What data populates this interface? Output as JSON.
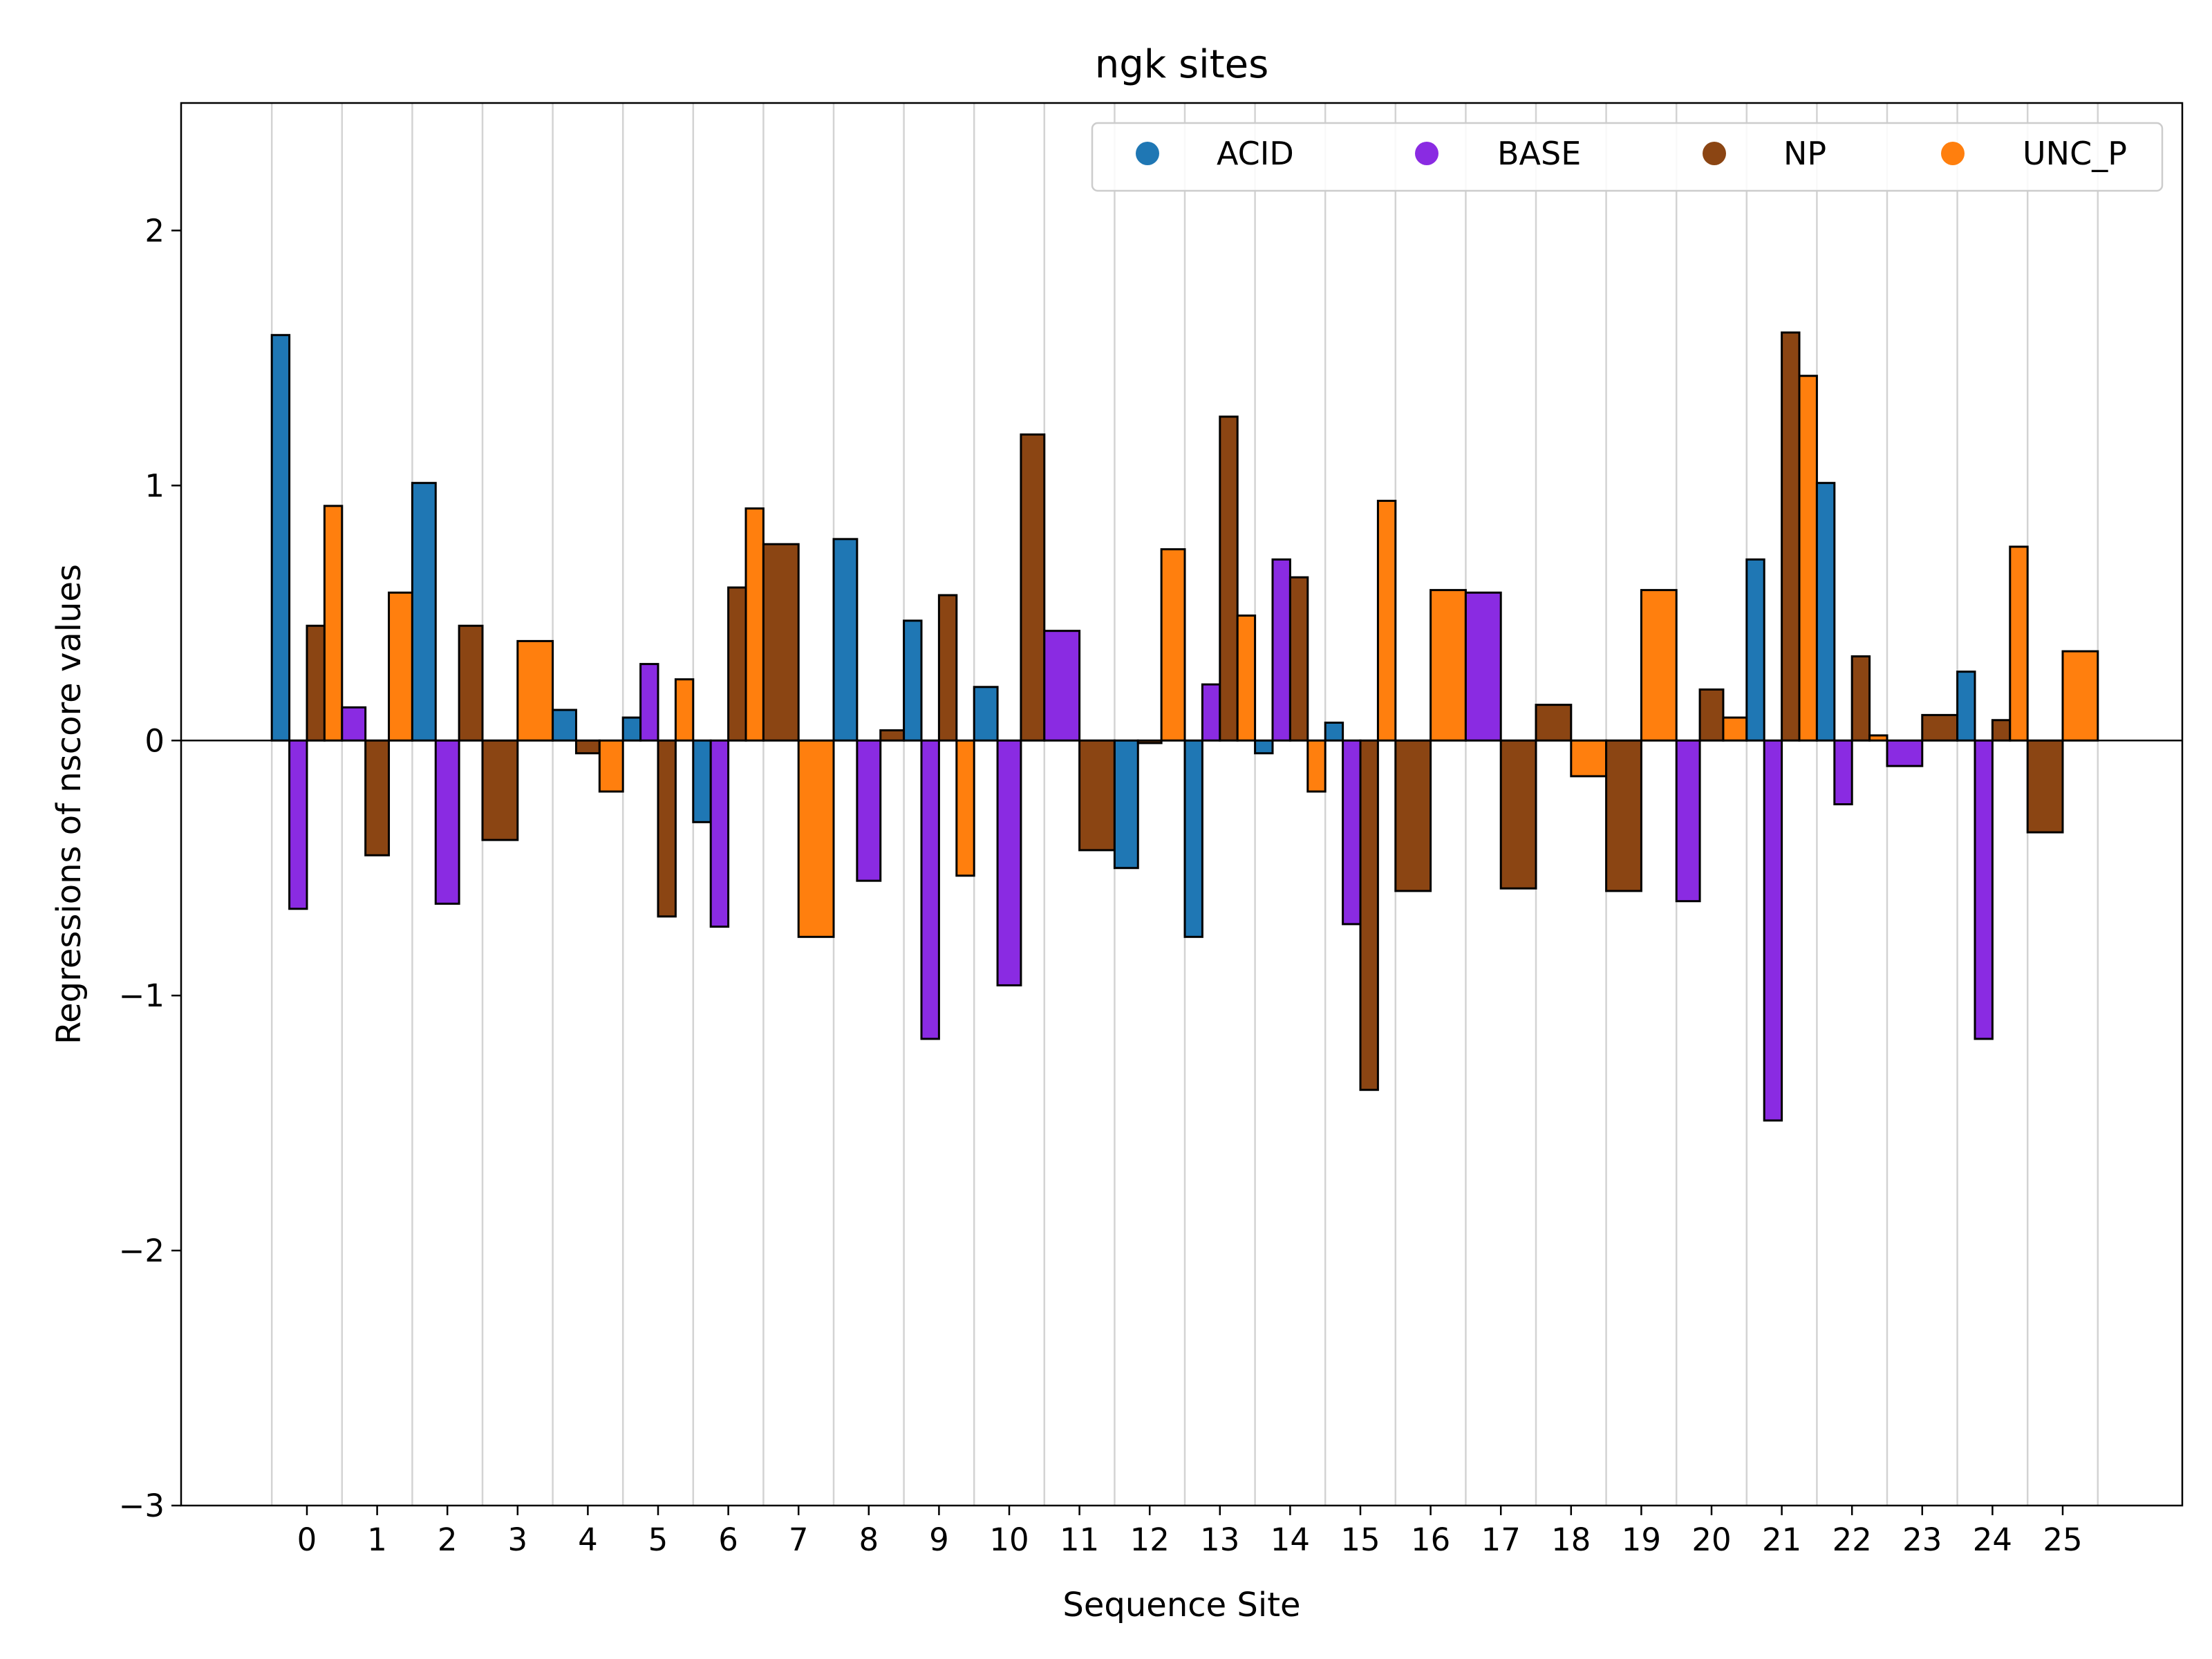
{
  "chart_data": {
    "type": "bar",
    "title": "ngk sites",
    "xlabel": "Sequence Site",
    "ylabel": "Regressions of nscore values",
    "ylim": [
      -3,
      2.5
    ],
    "yticks": [
      2,
      1,
      0,
      -1,
      -2,
      -3
    ],
    "ytick_labels": [
      "2",
      "1",
      "0",
      "−1",
      "−2",
      "−3"
    ],
    "categories": [
      "0",
      "1",
      "2",
      "3",
      "4",
      "5",
      "6",
      "7",
      "8",
      "9",
      "10",
      "11",
      "12",
      "13",
      "14",
      "15",
      "16",
      "17",
      "18",
      "19",
      "20",
      "21",
      "22",
      "23",
      "24",
      "25"
    ],
    "grid": "vertical",
    "legend_position": "top-right",
    "legend": [
      {
        "name": "ACID",
        "color": "#1f77b4"
      },
      {
        "name": "BASE",
        "color": "#8a2be2"
      },
      {
        "name": "NP",
        "color": "#8b4513"
      },
      {
        "name": "UNC_P",
        "color": "#ff7f0e"
      }
    ],
    "sites": [
      {
        "site": "0",
        "bars": [
          {
            "group": "ACID",
            "value": 1.59
          },
          {
            "group": "BASE",
            "value": -0.66
          },
          {
            "group": "NP",
            "value": 0.45
          },
          {
            "group": "UNC_P",
            "value": 0.92
          }
        ]
      },
      {
        "site": "1",
        "bars": [
          {
            "group": "BASE",
            "value": 0.13
          },
          {
            "group": "NP",
            "value": -0.45
          },
          {
            "group": "UNC_P",
            "value": 0.58
          }
        ]
      },
      {
        "site": "2",
        "bars": [
          {
            "group": "ACID",
            "value": 1.01
          },
          {
            "group": "BASE",
            "value": -0.64
          },
          {
            "group": "NP",
            "value": 0.45
          }
        ]
      },
      {
        "site": "3",
        "bars": [
          {
            "group": "NP",
            "value": -0.39
          },
          {
            "group": "UNC_P",
            "value": 0.39
          }
        ]
      },
      {
        "site": "4",
        "bars": [
          {
            "group": "ACID",
            "value": 0.12
          },
          {
            "group": "NP",
            "value": -0.05
          },
          {
            "group": "UNC_P",
            "value": -0.2
          }
        ]
      },
      {
        "site": "5",
        "bars": [
          {
            "group": "ACID",
            "value": 0.09
          },
          {
            "group": "BASE",
            "value": 0.3
          },
          {
            "group": "NP",
            "value": -0.69
          },
          {
            "group": "UNC_P",
            "value": 0.24
          }
        ]
      },
      {
        "site": "6",
        "bars": [
          {
            "group": "ACID",
            "value": -0.32
          },
          {
            "group": "BASE",
            "value": -0.73
          },
          {
            "group": "NP",
            "value": 0.6
          },
          {
            "group": "UNC_P",
            "value": 0.91
          }
        ]
      },
      {
        "site": "7",
        "bars": [
          {
            "group": "NP",
            "value": 0.77
          },
          {
            "group": "UNC_P",
            "value": -0.77
          }
        ]
      },
      {
        "site": "8",
        "bars": [
          {
            "group": "ACID",
            "value": 0.79
          },
          {
            "group": "BASE",
            "value": -0.55
          },
          {
            "group": "NP",
            "value": 0.04
          }
        ]
      },
      {
        "site": "9",
        "bars": [
          {
            "group": "ACID",
            "value": 0.47
          },
          {
            "group": "BASE",
            "value": -1.17
          },
          {
            "group": "NP",
            "value": 0.57
          },
          {
            "group": "UNC_P",
            "value": -0.53
          }
        ]
      },
      {
        "site": "10",
        "bars": [
          {
            "group": "ACID",
            "value": 0.21
          },
          {
            "group": "BASE",
            "value": -0.96
          },
          {
            "group": "NP",
            "value": 1.2
          }
        ]
      },
      {
        "site": "11",
        "bars": [
          {
            "group": "BASE",
            "value": 0.43
          },
          {
            "group": "NP",
            "value": -0.43
          }
        ]
      },
      {
        "site": "12",
        "bars": [
          {
            "group": "ACID",
            "value": -0.5
          },
          {
            "group": "NP",
            "value": -0.01
          },
          {
            "group": "UNC_P",
            "value": 0.75
          }
        ]
      },
      {
        "site": "13",
        "bars": [
          {
            "group": "ACID",
            "value": -0.77
          },
          {
            "group": "BASE",
            "value": 0.22
          },
          {
            "group": "NP",
            "value": 1.27
          },
          {
            "group": "UNC_P",
            "value": 0.49
          }
        ]
      },
      {
        "site": "14",
        "bars": [
          {
            "group": "ACID",
            "value": -0.05
          },
          {
            "group": "BASE",
            "value": 0.71
          },
          {
            "group": "NP",
            "value": 0.64
          },
          {
            "group": "UNC_P",
            "value": -0.2
          }
        ]
      },
      {
        "site": "15",
        "bars": [
          {
            "group": "ACID",
            "value": 0.07
          },
          {
            "group": "BASE",
            "value": -0.72
          },
          {
            "group": "NP",
            "value": -1.37
          },
          {
            "group": "UNC_P",
            "value": 0.94
          }
        ]
      },
      {
        "site": "16",
        "bars": [
          {
            "group": "NP",
            "value": -0.59
          },
          {
            "group": "UNC_P",
            "value": 0.59
          }
        ]
      },
      {
        "site": "17",
        "bars": [
          {
            "group": "BASE",
            "value": 0.58
          },
          {
            "group": "NP",
            "value": -0.58
          }
        ]
      },
      {
        "site": "18",
        "bars": [
          {
            "group": "NP",
            "value": 0.14
          },
          {
            "group": "UNC_P",
            "value": -0.14
          }
        ]
      },
      {
        "site": "19",
        "bars": [
          {
            "group": "NP",
            "value": -0.59
          },
          {
            "group": "UNC_P",
            "value": 0.59
          }
        ]
      },
      {
        "site": "20",
        "bars": [
          {
            "group": "BASE",
            "value": -0.63
          },
          {
            "group": "NP",
            "value": 0.2
          },
          {
            "group": "UNC_P",
            "value": 0.09
          }
        ]
      },
      {
        "site": "21",
        "bars": [
          {
            "group": "ACID",
            "value": 0.71
          },
          {
            "group": "BASE",
            "value": -1.49
          },
          {
            "group": "NP",
            "value": 1.6
          },
          {
            "group": "UNC_P",
            "value": 1.43
          }
        ]
      },
      {
        "site": "22",
        "bars": [
          {
            "group": "ACID",
            "value": 1.01
          },
          {
            "group": "BASE",
            "value": -0.25
          },
          {
            "group": "NP",
            "value": 0.33
          },
          {
            "group": "UNC_P",
            "value": 0.02
          }
        ]
      },
      {
        "site": "23",
        "bars": [
          {
            "group": "BASE",
            "value": -0.1
          },
          {
            "group": "NP",
            "value": 0.1
          }
        ]
      },
      {
        "site": "24",
        "bars": [
          {
            "group": "ACID",
            "value": 0.27
          },
          {
            "group": "BASE",
            "value": -1.17
          },
          {
            "group": "NP",
            "value": 0.08
          },
          {
            "group": "UNC_P",
            "value": 0.76
          }
        ]
      },
      {
        "site": "25",
        "bars": [
          {
            "group": "NP",
            "value": -0.36
          },
          {
            "group": "UNC_P",
            "value": 0.35
          }
        ]
      }
    ]
  }
}
